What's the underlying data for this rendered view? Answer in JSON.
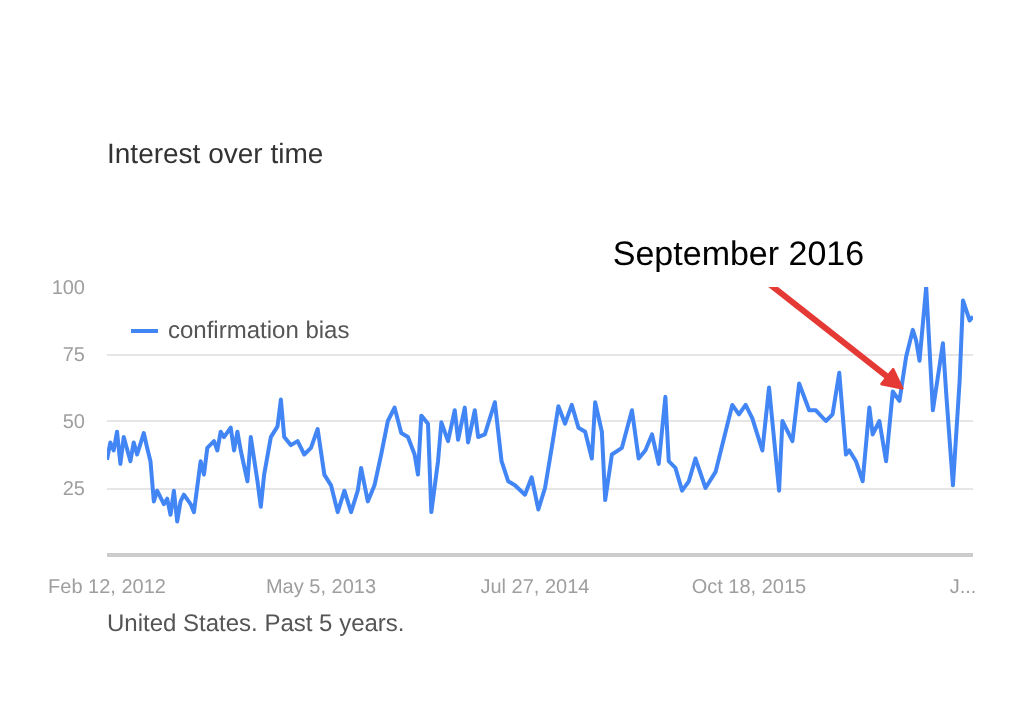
{
  "chart_data": {
    "type": "line",
    "title": "Interest over time",
    "x": [
      "2012-02-12",
      "2012-02-19",
      "2012-02-26",
      "2012-03-04",
      "2012-03-11",
      "2012-03-18",
      "2012-04-01",
      "2012-04-08",
      "2012-04-15",
      "2012-04-29",
      "2012-05-06",
      "2012-05-13",
      "2012-05-20",
      "2012-05-27",
      "2012-06-10",
      "2012-06-17",
      "2012-06-24",
      "2012-07-01",
      "2012-07-08",
      "2012-07-15",
      "2012-07-22",
      "2012-08-05",
      "2012-08-12",
      "2012-08-26",
      "2012-09-02",
      "2012-09-09",
      "2012-09-23",
      "2012-09-30",
      "2012-10-07",
      "2012-10-14",
      "2012-10-28",
      "2012-11-04",
      "2012-11-11",
      "2012-11-18",
      "2012-12-02",
      "2012-12-09",
      "2012-12-23",
      "2012-12-30",
      "2013-01-06",
      "2013-01-20",
      "2013-02-03",
      "2013-02-10",
      "2013-02-17",
      "2013-03-03",
      "2013-03-17",
      "2013-03-31",
      "2013-04-14",
      "2013-04-28",
      "2013-05-12",
      "2013-05-26",
      "2013-06-09",
      "2013-06-23",
      "2013-07-07",
      "2013-07-21",
      "2013-07-28",
      "2013-08-11",
      "2013-08-25",
      "2013-09-08",
      "2013-09-22",
      "2013-10-06",
      "2013-10-20",
      "2013-11-03",
      "2013-11-17",
      "2013-11-24",
      "2013-12-01",
      "2013-12-15",
      "2013-12-22",
      "2014-01-05",
      "2014-01-12",
      "2014-01-26",
      "2014-02-09",
      "2014-02-16",
      "2014-03-02",
      "2014-03-09",
      "2014-03-23",
      "2014-03-30",
      "2014-04-13",
      "2014-05-04",
      "2014-05-18",
      "2014-06-01",
      "2014-06-15",
      "2014-07-06",
      "2014-07-20",
      "2014-08-03",
      "2014-08-17",
      "2014-08-31",
      "2014-09-14",
      "2014-09-28",
      "2014-10-12",
      "2014-10-26",
      "2014-11-09",
      "2014-11-23",
      "2014-11-30",
      "2014-12-14",
      "2014-12-21",
      "2015-01-04",
      "2015-01-25",
      "2015-02-15",
      "2015-03-01",
      "2015-03-15",
      "2015-03-29",
      "2015-04-12",
      "2015-04-26",
      "2015-05-03",
      "2015-05-17",
      "2015-05-31",
      "2015-06-14",
      "2015-06-28",
      "2015-07-19",
      "2015-08-09",
      "2015-08-30",
      "2015-09-13",
      "2015-09-27",
      "2015-10-11",
      "2015-10-25",
      "2015-11-15",
      "2015-11-29",
      "2015-12-20",
      "2015-12-27",
      "2016-01-17",
      "2016-01-31",
      "2016-02-21",
      "2016-03-06",
      "2016-03-27",
      "2016-04-10",
      "2016-04-24",
      "2016-05-08",
      "2016-05-15",
      "2016-05-29",
      "2016-06-12",
      "2016-06-26",
      "2016-07-03",
      "2016-07-17",
      "2016-07-31",
      "2016-08-14",
      "2016-08-28",
      "2016-09-11",
      "2016-09-25",
      "2016-10-02",
      "2016-10-09",
      "2016-10-23",
      "2016-11-06",
      "2016-11-27",
      "2016-12-04",
      "2016-12-18",
      "2017-01-01",
      "2017-01-08",
      "2017-01-22",
      "2017-01-29"
    ],
    "series": [
      {
        "name": "confirmation bias",
        "color": "#4285f4",
        "values": [
          35.5,
          42,
          39,
          46,
          34,
          44,
          35,
          42,
          37.5,
          45.5,
          40,
          35,
          20,
          24,
          19,
          21,
          15,
          24,
          12.5,
          20,
          22.5,
          19,
          16,
          35,
          30,
          40,
          42.5,
          39,
          46,
          44,
          47.5,
          39,
          46,
          39,
          27.5,
          44,
          27.5,
          18,
          30,
          44,
          48,
          58,
          44,
          41,
          42.5,
          37.5,
          40,
          47,
          30,
          26,
          16,
          24,
          16,
          24,
          32.5,
          20,
          26,
          37.5,
          50,
          55,
          45.5,
          44,
          37.5,
          30,
          52,
          49,
          16,
          35,
          49.5,
          42.5,
          54,
          43,
          55,
          42,
          54,
          44,
          45,
          57,
          35,
          27.5,
          26,
          22.5,
          29,
          17,
          25,
          40,
          55.5,
          49,
          56,
          47.5,
          46,
          36,
          57,
          46,
          20.5,
          37.5,
          40,
          54,
          36,
          39,
          45,
          34,
          59,
          35,
          32.5,
          24,
          27.5,
          36,
          25,
          31,
          46,
          56,
          52.5,
          56,
          51,
          39,
          62.5,
          24,
          50,
          42.5,
          64,
          54,
          54,
          50,
          52.5,
          68,
          37.5,
          39,
          35,
          27.5,
          55,
          45,
          50,
          35,
          61,
          57.5,
          74,
          84,
          80,
          72.5,
          100,
          54,
          79,
          60,
          26,
          65,
          95,
          87.5,
          89
        ]
      }
    ],
    "xlim": [
      "2012-02-12",
      "2017-01-29"
    ],
    "xticks": [
      {
        "value": "2012-02-12",
        "label": "Feb 12, 2012"
      },
      {
        "value": "2013-05-05",
        "label": "May 5, 2013"
      },
      {
        "value": "2014-07-27",
        "label": "Jul 27, 2014"
      },
      {
        "value": "2015-10-18",
        "label": "Oct 18, 2015"
      },
      {
        "value": "2017-01-08",
        "label": "J..."
      }
    ],
    "ylim": [
      0,
      100
    ],
    "yticks": [
      25,
      50,
      75,
      100
    ],
    "grid": "y",
    "legend": "top left",
    "annotations": [
      {
        "text": "September 2016",
        "x": "2016-09-04",
        "y": 62
      },
      "United States. Past 5 years."
    ]
  }
}
